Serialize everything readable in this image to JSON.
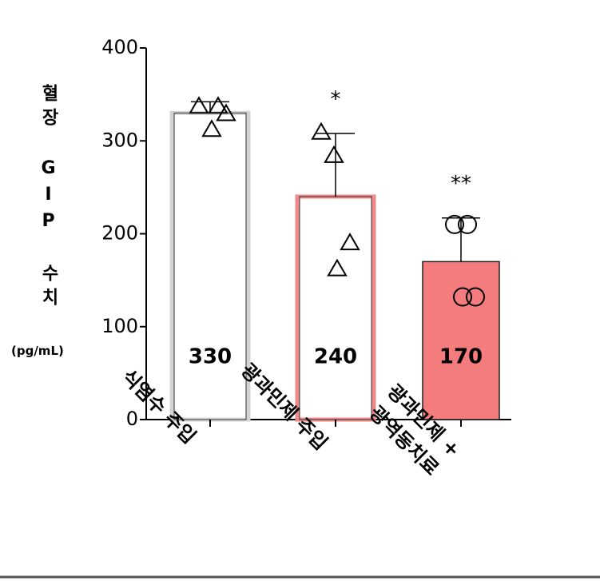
{
  "chart_data": {
    "type": "bar",
    "y_label": "혈장 GIP 수치",
    "y_unit": "(pg/mL)",
    "categories": [
      "식염수 주입",
      "광과민제 주입",
      "광과민제 + 광역동치료"
    ],
    "values": [
      330,
      240,
      170
    ],
    "errors": [
      12,
      68,
      47
    ],
    "points": [
      [
        337,
        337,
        329,
        312
      ],
      [
        309,
        284,
        190,
        162
      ],
      [
        210,
        210,
        132,
        132
      ]
    ],
    "markers": [
      "triangle",
      "triangle",
      "circle"
    ],
    "significance": [
      null,
      "*",
      "**"
    ],
    "colors": [
      "#ffffff",
      "#ffffff",
      "#f47c7c"
    ],
    "edge_colors": [
      "#d4d4d4",
      "#f08a8a",
      "#222222"
    ],
    "ylim": [
      0,
      400
    ],
    "yticks": [
      0,
      100,
      200,
      300,
      400
    ]
  }
}
